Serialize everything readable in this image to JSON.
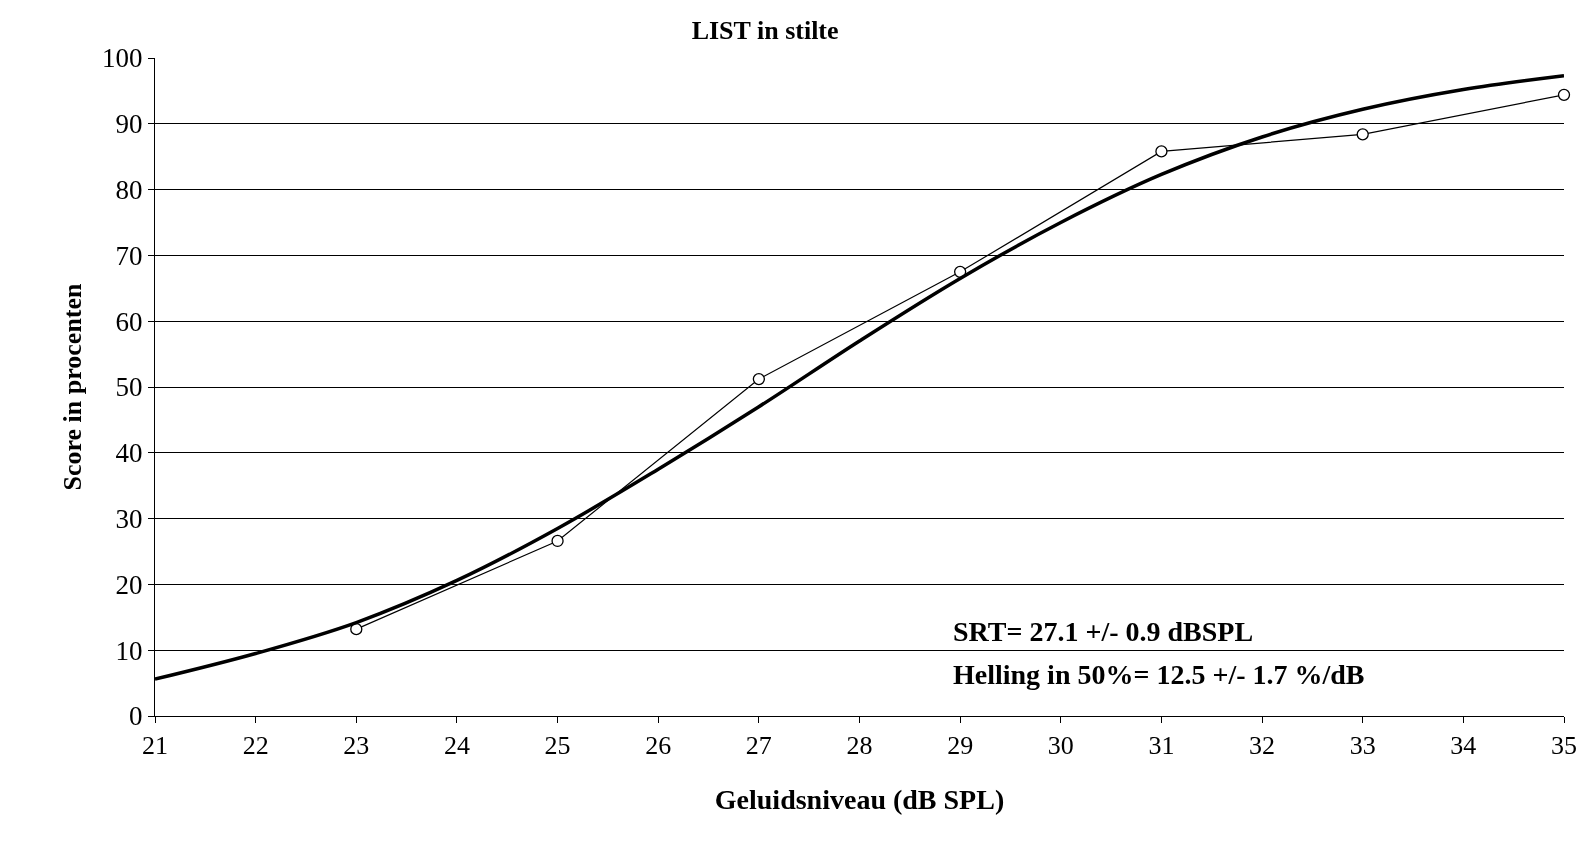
{
  "chart_data": {
    "type": "line",
    "title": "LIST in stilte",
    "xlabel": "Geluidsniveau (dB SPL)",
    "ylabel": "Score in procenten",
    "series": [
      {
        "color": "#000000",
        "marker": "circle",
        "x": [
          23,
          25,
          27,
          29,
          31,
          33,
          35
        ],
        "values": [
          13.2,
          26.6,
          51.2,
          67.5,
          85.8,
          88.4,
          94.4
        ]
      },
      {
        "color": "#000000",
        "marker": "none",
        "x": [
          21,
          22,
          23,
          24,
          25,
          26,
          27,
          28,
          29,
          30,
          31,
          32,
          33,
          34,
          35
        ],
        "values": [
          5.6,
          9.5,
          14.2,
          20.6,
          28.5,
          37.5,
          47,
          57,
          66.5,
          75,
          82.3,
          88,
          92.2,
          95.2,
          97.3
        ]
      }
    ],
    "xlim": [
      21,
      35
    ],
    "xticks": [
      21,
      22,
      23,
      24,
      25,
      26,
      27,
      28,
      29,
      30,
      31,
      32,
      33,
      34,
      35
    ],
    "ylim": [
      0,
      100
    ],
    "yticks": [
      0,
      10,
      20,
      30,
      40,
      50,
      60,
      70,
      80,
      90,
      100
    ],
    "grid": "y",
    "annotations": [
      "SRT= 27.1 +/- 0.9 dBSPL",
      "Helling in 50%= 12.5 +/- 1.7 %/dB"
    ]
  }
}
